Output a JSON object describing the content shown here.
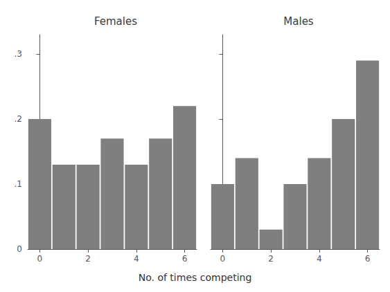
{
  "chart_data": [
    {
      "type": "bar",
      "title": "Females",
      "xlabel": "No. of times competing",
      "x": [
        0,
        1,
        2,
        3,
        4,
        5,
        6
      ],
      "values": [
        0.2,
        0.13,
        0.13,
        0.17,
        0.13,
        0.17,
        0.22
      ],
      "color": "#7f7f7f",
      "xlim": [
        -0.5,
        6.5
      ],
      "xticks": [
        0,
        2,
        4,
        6
      ],
      "ylim": [
        0,
        0.33
      ],
      "yticks": [
        0,
        {
          "value": 0.1,
          "label": ".1"
        },
        {
          "value": 0.2,
          "label": ".2"
        },
        {
          "value": 0.3,
          "label": ".3"
        }
      ],
      "grid": false
    },
    {
      "type": "bar",
      "title": "Males",
      "xlabel": "No. of times competing",
      "x": [
        0,
        1,
        2,
        3,
        4,
        5,
        6
      ],
      "values": [
        0.1,
        0.14,
        0.03,
        0.1,
        0.14,
        0.2,
        0.29
      ],
      "color": "#7f7f7f",
      "xlim": [
        -0.5,
        6.5
      ],
      "xticks": [
        0,
        2,
        4,
        6
      ],
      "ylim": [
        0,
        0.33
      ],
      "yticks": [
        0,
        {
          "value": 0.1,
          "label": ".1"
        },
        {
          "value": 0.2,
          "label": ".2"
        },
        {
          "value": 0.3,
          "label": ".3"
        }
      ],
      "grid": false,
      "tick_labels": "x"
    }
  ]
}
